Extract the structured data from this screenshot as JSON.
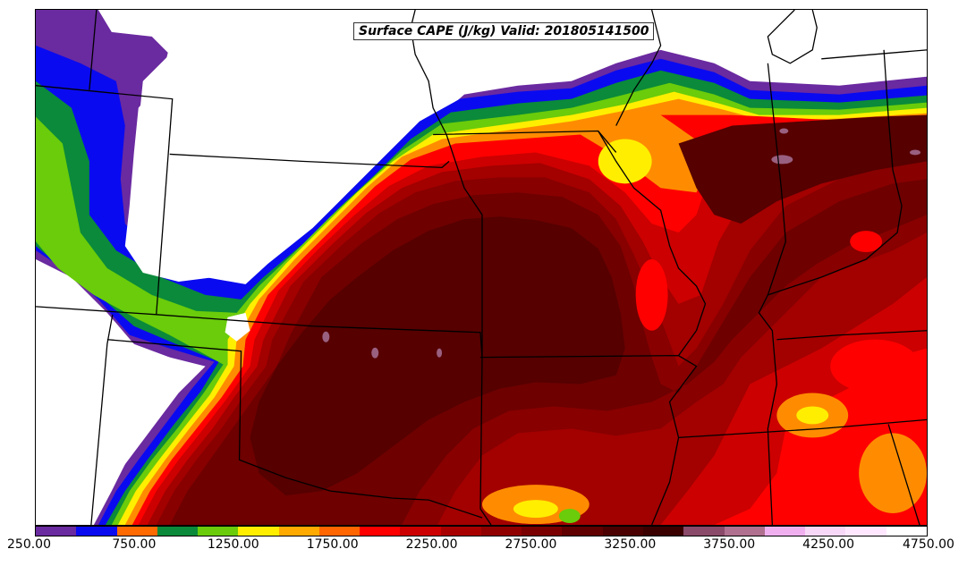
{
  "title": "Surface CAPE (J/kg) Valid: 201805141500",
  "colorbar": {
    "colors": [
      "#6a2aa0",
      "#0a0af0",
      "#ff6a00",
      "#0a8a3a",
      "#6acc0a",
      "#ffee00",
      "#ffaa00",
      "#ff6600",
      "#ff0000",
      "#cc0000",
      "#a80000",
      "#900000",
      "#7a0000",
      "#600000",
      "#4a0000",
      "#3a0000",
      "#8a4a6a",
      "#b07090",
      "#f0b0f0",
      "#f8d8f8",
      "#ffe8ff",
      "#ffffff"
    ],
    "tick_labels": [
      "250.00",
      "750.00",
      "1250.00",
      "1750.00",
      "2250.00",
      "2750.00",
      "3250.00",
      "3750.00",
      "4250.00",
      "4750.00"
    ]
  },
  "fields": {
    "colors": {
      "c250": "#6a2aa0",
      "c500": "#0a0af0",
      "c750": "#0a8a3a",
      "c1000": "#6acc0a",
      "c1250": "#ffee00",
      "c1500": "#ff8c00",
      "c1750": "#ff0000",
      "c2000": "#cc0000",
      "c2250": "#a30000",
      "c2500": "#880000",
      "c2750": "#6e0000",
      "c3000": "#560000",
      "c3500": "#9a6080"
    }
  }
}
